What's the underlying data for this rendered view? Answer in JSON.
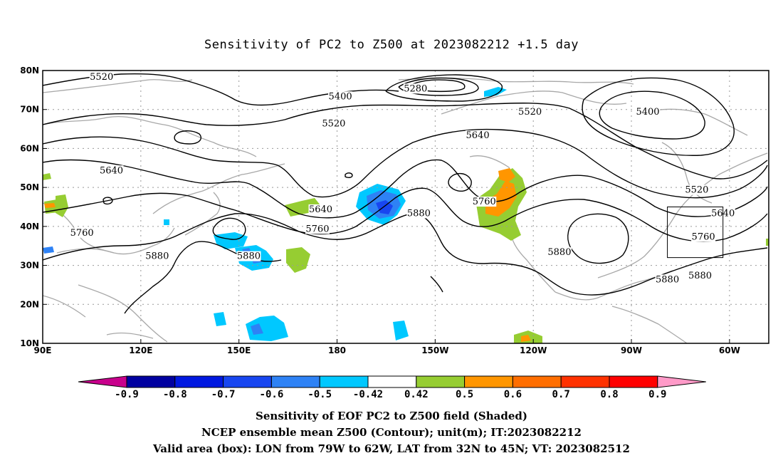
{
  "title": "Sensitivity of PC2 to Z500 at 2023082212 +1.5 day",
  "axes": {
    "lon_labels": [
      "90E",
      "120E",
      "150E",
      "180",
      "150W",
      "120W",
      "90W",
      "60W"
    ],
    "lon_values": [
      90,
      120,
      150,
      180,
      210,
      240,
      270,
      300
    ],
    "lat_labels": [
      "10N",
      "20N",
      "30N",
      "40N",
      "50N",
      "60N",
      "70N",
      "80N"
    ],
    "lat_values": [
      10,
      20,
      30,
      40,
      50,
      60,
      70,
      80
    ],
    "lon_range": [
      90,
      312
    ],
    "lat_range": [
      10,
      80
    ]
  },
  "colorbar": {
    "labels": [
      "-0.9",
      "-0.8",
      "-0.7",
      "-0.6",
      "-0.5",
      "-0.42",
      "0.42",
      "0.5",
      "0.6",
      "0.7",
      "0.8",
      "0.9"
    ],
    "colors": [
      "#c8008c",
      "#0000a0",
      "#0018e0",
      "#1846f0",
      "#2e82f5",
      "#00c8ff",
      "#ffffff",
      "#96cd32",
      "#ff9600",
      "#ff6e00",
      "#ff3200",
      "#ff0000",
      "#ff9ac8"
    ]
  },
  "contour_labels": [
    {
      "text": "5520",
      "lon": 108,
      "lat": 78
    },
    {
      "text": "5400",
      "lon": 181,
      "lat": 73
    },
    {
      "text": "5280",
      "lon": 204,
      "lat": 75
    },
    {
      "text": "5520",
      "lon": 179,
      "lat": 66
    },
    {
      "text": "5640",
      "lon": 223,
      "lat": 63
    },
    {
      "text": "5520",
      "lon": 239,
      "lat": 69
    },
    {
      "text": "5400",
      "lon": 275,
      "lat": 69
    },
    {
      "text": "5640",
      "lon": 111,
      "lat": 54
    },
    {
      "text": "5520",
      "lon": 290,
      "lat": 49
    },
    {
      "text": "5640",
      "lon": 298,
      "lat": 43
    },
    {
      "text": "5640",
      "lon": 175,
      "lat": 44
    },
    {
      "text": "5760",
      "lon": 225,
      "lat": 46
    },
    {
      "text": "5880",
      "lon": 205,
      "lat": 43
    },
    {
      "text": "5760",
      "lon": 174,
      "lat": 39
    },
    {
      "text": "5760",
      "lon": 102,
      "lat": 38
    },
    {
      "text": "5760",
      "lon": 292,
      "lat": 37
    },
    {
      "text": "5880",
      "lon": 125,
      "lat": 32
    },
    {
      "text": "5880",
      "lon": 153,
      "lat": 32
    },
    {
      "text": "5880",
      "lon": 248,
      "lat": 33
    },
    {
      "text": "5880",
      "lon": 281,
      "lat": 26
    },
    {
      "text": "5880",
      "lon": 291,
      "lat": 27
    }
  ],
  "valid_box": {
    "lon_min": 281,
    "lon_max": 298,
    "lat_min": 32,
    "lat_max": 45
  },
  "captions": {
    "line1": "Sensitivity of EOF PC2 to Z500 field (Shaded)",
    "line2": "NCEP ensemble mean Z500 (Contour); unit(m); IT:2023082212",
    "line3": "Valid area (box): LON from 79W to 62W, LAT from 32N to 45N; VT: 2023082512"
  }
}
